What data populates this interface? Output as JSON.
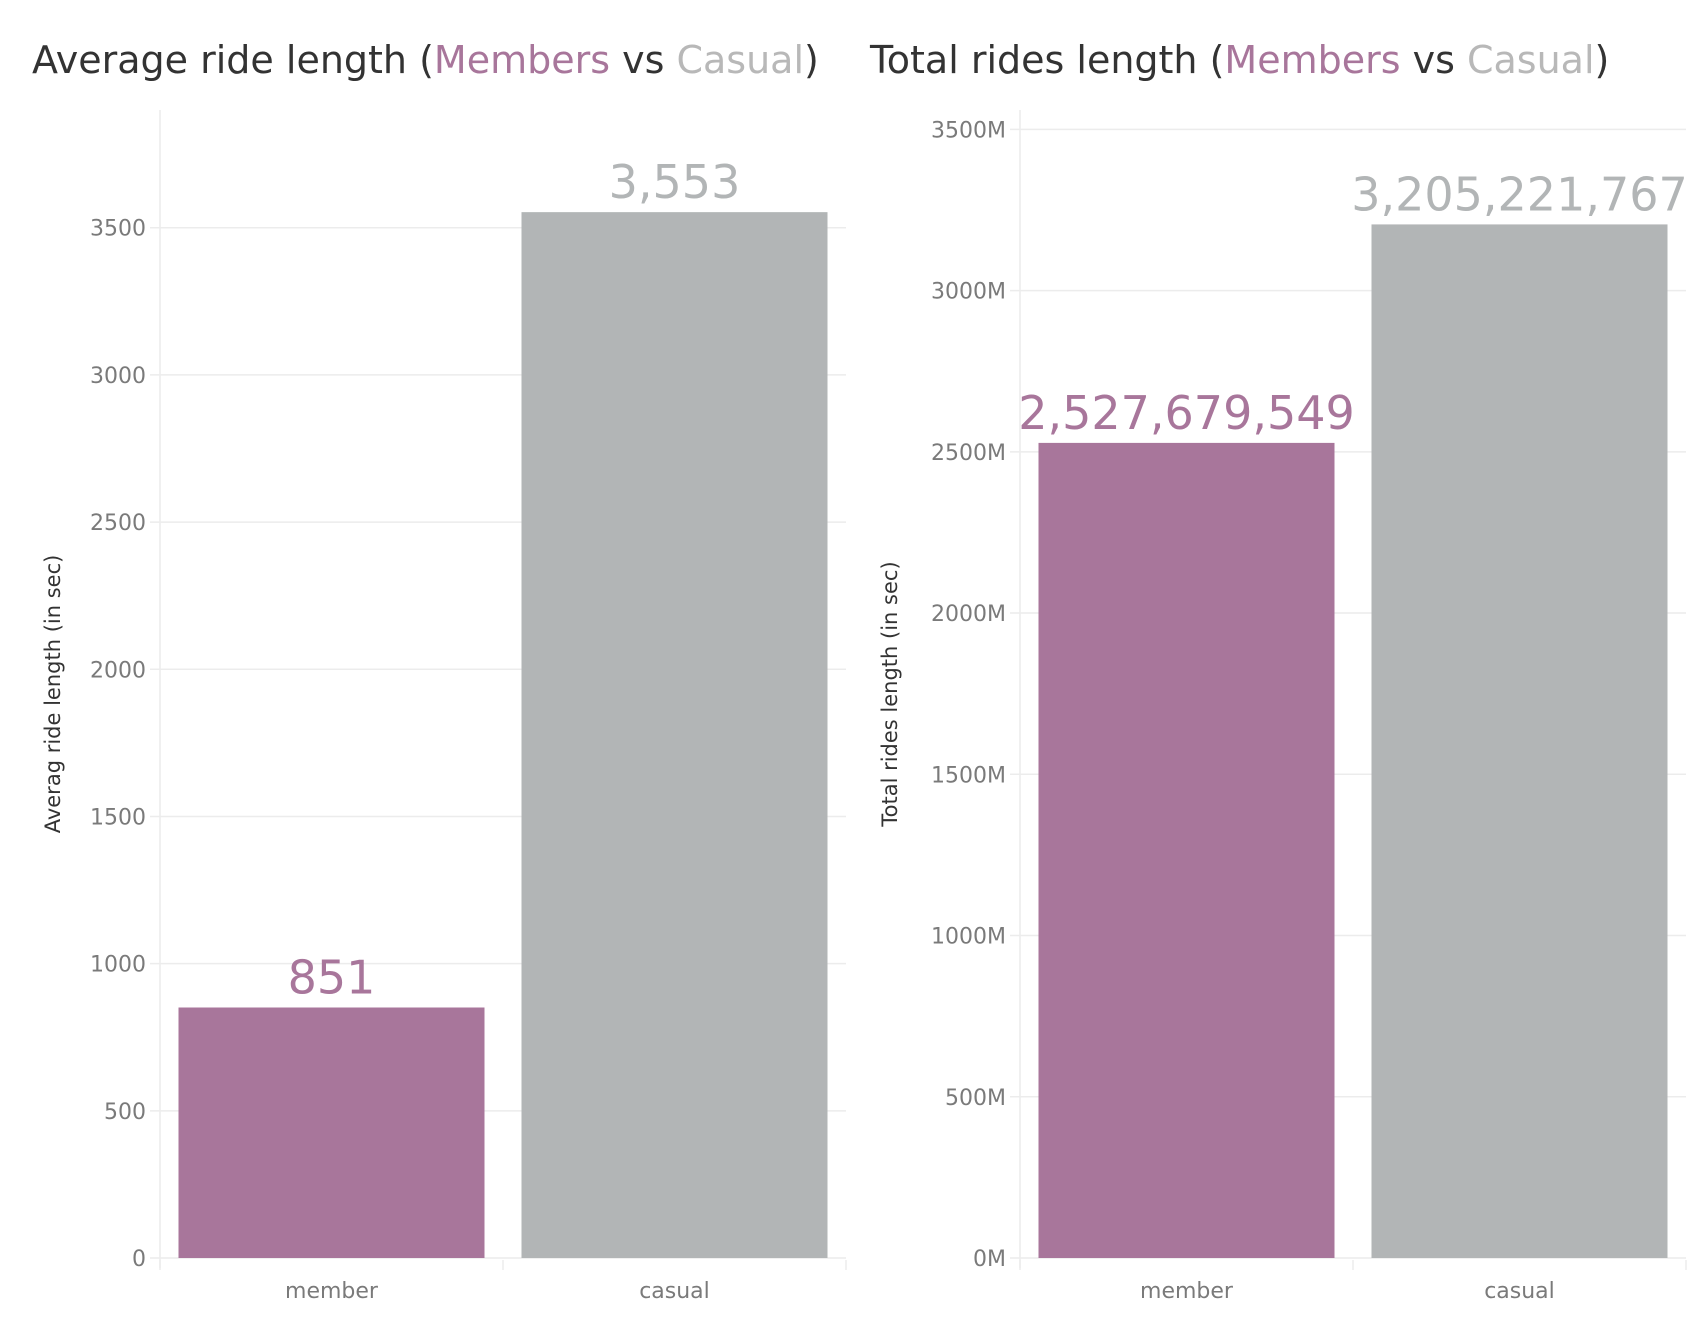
{
  "colors": {
    "member": "#a8769b",
    "casual": "#b2b5b6"
  },
  "titles": [
    {
      "prefix": "Average ride length (",
      "members": "Members",
      "vs": " vs ",
      "casual": "Casual",
      "suffix": ")"
    },
    {
      "prefix": "Total rides length (",
      "members": "Members",
      "vs": " vs ",
      "casual": "Casual",
      "suffix": ")"
    }
  ],
  "chart_data": [
    {
      "type": "bar",
      "title": "Average ride length (Members vs Casual)",
      "categories": [
        "member",
        "casual"
      ],
      "values": [
        851,
        3553
      ],
      "value_labels": [
        "851",
        "3,553"
      ],
      "ylabel": "Averag ride length (in sec)",
      "ylim": [
        0,
        3900
      ],
      "yticks": [
        0,
        500,
        1000,
        1500,
        2000,
        2500,
        3000,
        3500
      ],
      "ytick_labels": [
        "0",
        "500",
        "1000",
        "1500",
        "2000",
        "2500",
        "3000",
        "3500"
      ],
      "grid": true
    },
    {
      "type": "bar",
      "title": "Total rides length (Members vs Casual)",
      "categories": [
        "member",
        "casual"
      ],
      "values": [
        2527679549,
        3205221767
      ],
      "value_labels": [
        "2,527,679,549",
        "3,205,221,767"
      ],
      "ylabel": "Total rides length (in sec)",
      "ylim": [
        0,
        3560000000
      ],
      "yticks": [
        0,
        500000000,
        1000000000,
        1500000000,
        2000000000,
        2500000000,
        3000000000,
        3500000000
      ],
      "ytick_labels": [
        "0M",
        "500M",
        "1000M",
        "1500M",
        "2000M",
        "2500M",
        "3000M",
        "3500M"
      ],
      "grid": true
    }
  ]
}
